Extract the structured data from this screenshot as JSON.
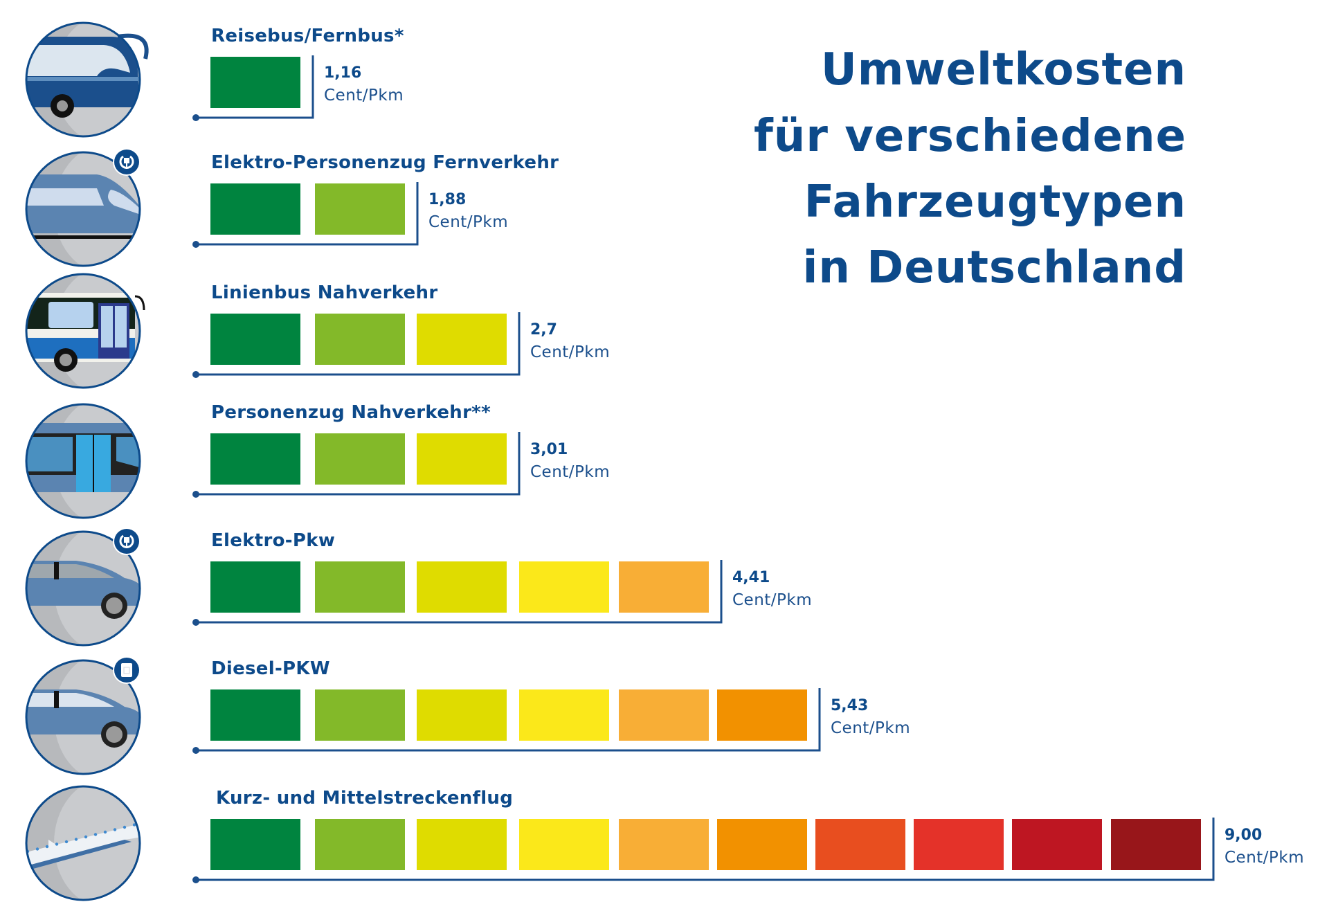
{
  "title": {
    "lines": [
      "Umweltkosten",
      "für verschiedene",
      "Fahrzeugtypen",
      "in Deutschland"
    ],
    "color": "#0d4a8a"
  },
  "chart_data": {
    "type": "bar",
    "title": "Umweltkosten für verschiedene Fahrzeugtypen in Deutschland",
    "unit": "Cent/Pkm",
    "xlim": [
      0,
      9
    ],
    "categories": [
      "Reisebus/Fernbus*",
      "Elektro-Personenzug Fernverkehr",
      "Linienbus Nahverkehr",
      "Personenzug Nahverkehr**",
      "Elektro-Pkw",
      "Diesel-PKW",
      "Kurz- und Mittelstreckenflug"
    ],
    "values": [
      1.16,
      1.88,
      2.7,
      3.01,
      4.41,
      5.43,
      9.0
    ],
    "value_labels": [
      "1,16",
      "1,88",
      "2,7",
      "3,01",
      "4,41",
      "5,43",
      "9,00"
    ],
    "blocks": [
      1,
      2,
      3,
      3,
      5,
      6,
      10
    ],
    "icons": [
      "coach-bus-icon",
      "electric-train-icon",
      "city-bus-icon",
      "regional-train-icon",
      "electric-car-icon",
      "diesel-car-icon",
      "airplane-icon"
    ],
    "badges": [
      "",
      "plug-badge-icon",
      "",
      "",
      "plug-badge-icon",
      "fuel-can-badge-icon",
      ""
    ],
    "scale_colors": [
      "#00843f",
      "#83b929",
      "#dfdc00",
      "#fbe81a",
      "#f8ae36",
      "#f29100",
      "#e84e1f",
      "#e43229",
      "#be1622",
      "#98161a"
    ]
  },
  "colors": {
    "text": "#0d4a8a",
    "bracket": "#1b4f8c",
    "circle_fill": "#b7b9bc",
    "circle_stroke": "#0d4a8a"
  }
}
